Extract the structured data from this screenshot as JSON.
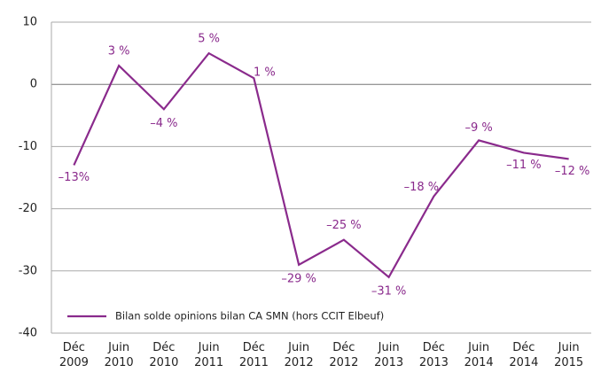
{
  "chart_data": {
    "type": "line",
    "categories": [
      "Déc 2009",
      "Juin 2010",
      "Déc 2010",
      "Juin 2011",
      "Déc 2011",
      "Juin 2012",
      "Déc 2012",
      "Juin 2013",
      "Déc 2013",
      "Juin 2014",
      "Déc 2014",
      "Juin 2015"
    ],
    "series": [
      {
        "name": "Bilan solde opinions bilan CA SMN (hors CCIT Elbeuf)",
        "color": "#8a2a8c",
        "values": [
          -13,
          3,
          -4,
          5,
          1,
          -29,
          -25,
          -31,
          -18,
          -9,
          -11,
          -12
        ],
        "value_labels": [
          "–13%",
          "3 %",
          "–4 %",
          "5 %",
          "1 %",
          "–29 %",
          "–25 %",
          "–31 %",
          "–18 %",
          "–9 %",
          "–11 %",
          "–12 %"
        ]
      }
    ],
    "ylim": [
      -40,
      10
    ],
    "yticks": [
      -40,
      -30,
      -20,
      -10,
      0,
      10
    ],
    "grid": true,
    "legend": "lower left"
  }
}
